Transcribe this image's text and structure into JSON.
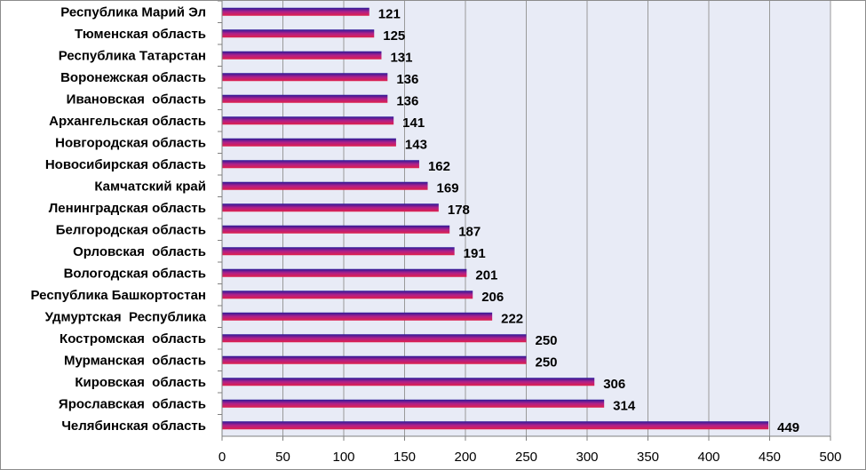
{
  "chart_data": {
    "type": "bar",
    "orientation": "horizontal",
    "categories": [
      "Республика Марий Эл",
      "Тюменская область",
      "Республика Татарстан",
      "Воронежская область",
      "Ивановская  область",
      "Архангельская область",
      "Новгородская область",
      "Новосибирская область",
      "Камчатский край",
      "Ленинградская область",
      "Белгородская область",
      "Орловская  область",
      "Вологодская область",
      "Республика Башкортостан",
      "Удмуртская  Республика",
      "Костромская  область",
      "Мурманская  область",
      "Кировская  область",
      "Ярославская  область",
      "Челябинская область"
    ],
    "values": [
      121,
      125,
      131,
      136,
      136,
      141,
      143,
      162,
      169,
      178,
      187,
      191,
      201,
      206,
      222,
      250,
      250,
      306,
      314,
      449
    ],
    "xlim": [
      0,
      500
    ],
    "xticks": [
      "0",
      "50",
      "100",
      "150",
      "200",
      "250",
      "300",
      "350",
      "400",
      "450",
      "500"
    ],
    "grid": "vertical",
    "legend": "none",
    "title": "",
    "xlabel": "",
    "ylabel": "",
    "colors": {
      "bar_top": "#2a1a99",
      "bar_mid": "#b0208a",
      "bar_bottom": "#e0204a",
      "plot_background": "#e8ebf6",
      "grid": "#9a9a9a"
    }
  }
}
